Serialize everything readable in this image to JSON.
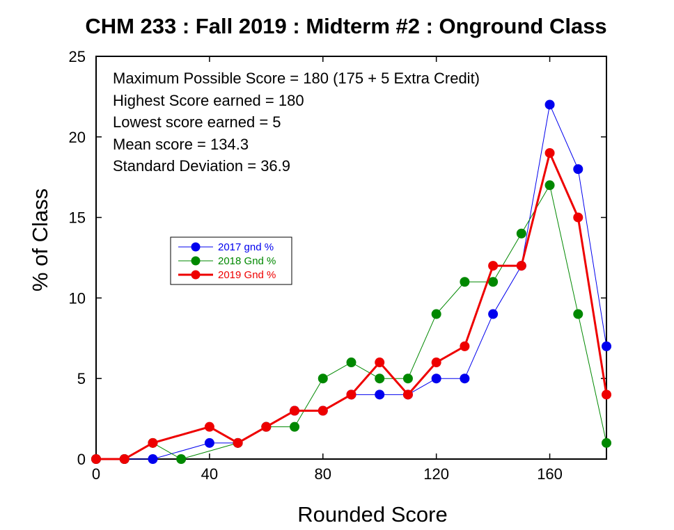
{
  "chart_data": {
    "type": "line",
    "title": "CHM 233 : Fall 2019 : Midterm #2 : Onground Class",
    "xlabel": "Rounded Score",
    "ylabel": "% of Class",
    "xlim": [
      0,
      180
    ],
    "ylim": [
      0,
      25
    ],
    "xticks": [
      0,
      40,
      80,
      120,
      160
    ],
    "yticks": [
      0,
      5,
      10,
      15,
      20,
      25
    ],
    "grid": false,
    "legend_position": "center-left",
    "annotations": [
      "Maximum Possible Score = 180 (175 + 5 Extra Credit)",
      "Highest Score earned =  180",
      "Lowest score earned = 5",
      "Mean score = 134.3",
      "Standard Deviation = 36.9"
    ],
    "x": [
      0,
      10,
      20,
      30,
      40,
      50,
      60,
      70,
      80,
      90,
      100,
      110,
      120,
      130,
      140,
      150,
      160,
      170,
      180
    ],
    "series": [
      {
        "name": "2017 gnd %",
        "color": "#0000ee",
        "x": [
          0,
          10,
          20,
          40,
          50,
          60,
          70,
          80,
          90,
          100,
          110,
          120,
          130,
          140,
          150,
          160,
          170,
          180
        ],
        "values": [
          0,
          0,
          0,
          1,
          1,
          2,
          3,
          3,
          4,
          4,
          4,
          5,
          5,
          9,
          12,
          22,
          18,
          7
        ]
      },
      {
        "name": "2018 Gnd %",
        "color": "#008800",
        "x": [
          0,
          10,
          20,
          30,
          50,
          60,
          70,
          80,
          90,
          100,
          110,
          120,
          130,
          140,
          150,
          160,
          170,
          180
        ],
        "values": [
          0,
          0,
          1,
          0,
          1,
          2,
          2,
          5,
          6,
          5,
          5,
          9,
          11,
          11,
          14,
          17,
          9,
          1
        ]
      },
      {
        "name": "2019 Gnd %",
        "color": "#ee0000",
        "x": [
          0,
          10,
          20,
          40,
          50,
          60,
          70,
          80,
          90,
          100,
          110,
          120,
          130,
          140,
          150,
          160,
          170,
          180
        ],
        "values": [
          0,
          0,
          1,
          2,
          1,
          2,
          3,
          3,
          4,
          6,
          4,
          6,
          7,
          12,
          12,
          19,
          15,
          4
        ]
      }
    ]
  }
}
